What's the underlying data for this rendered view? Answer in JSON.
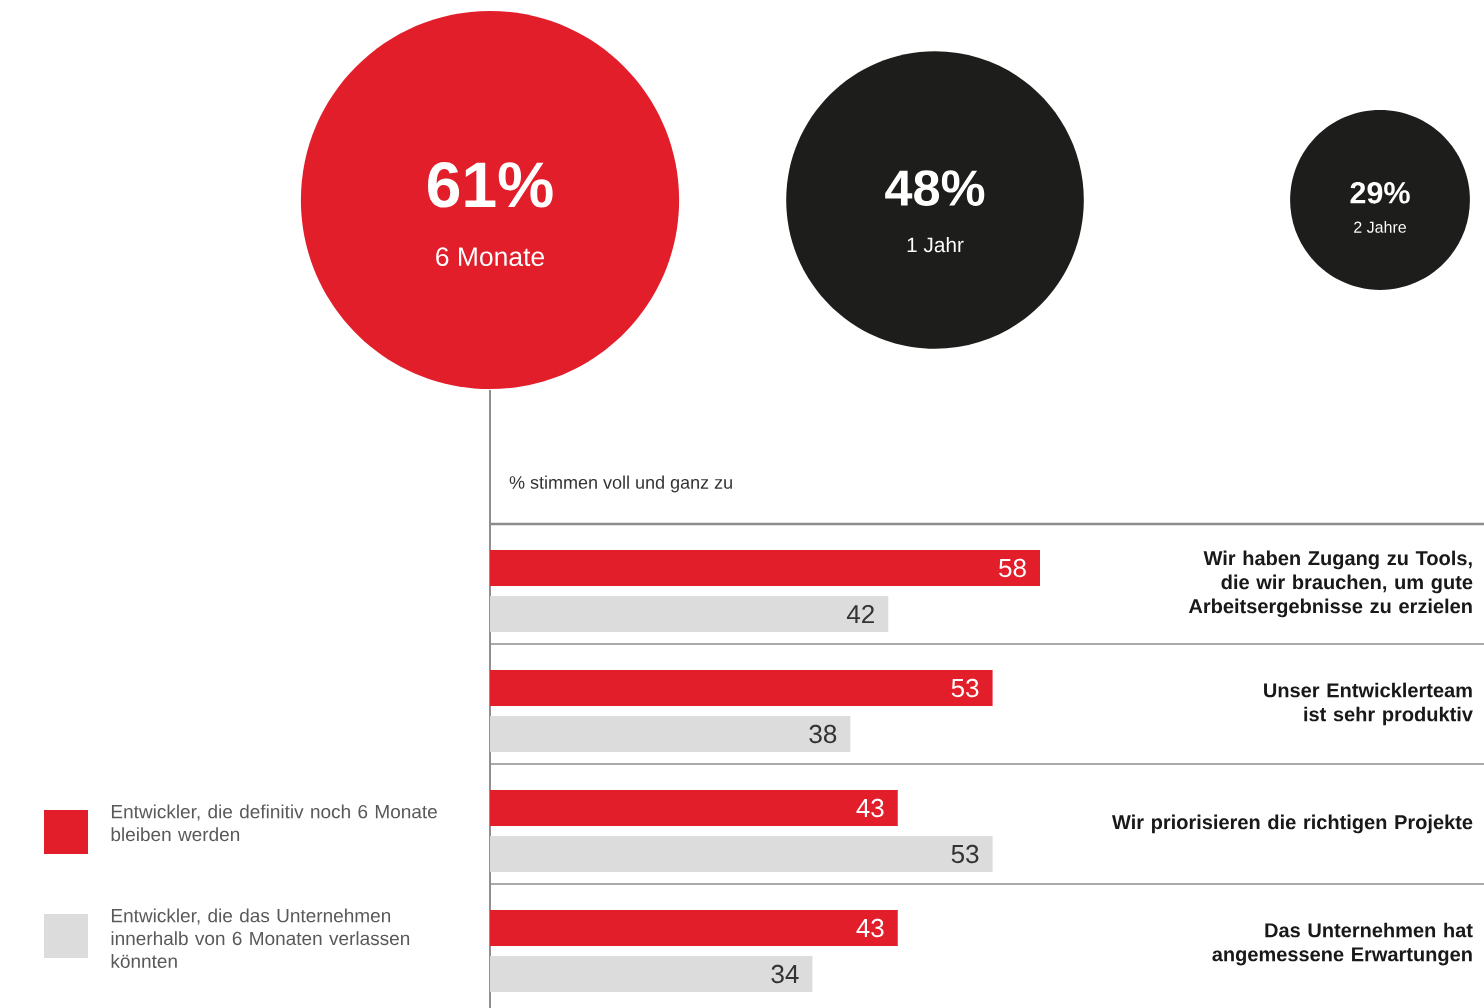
{
  "chart_data": [
    {
      "type": "other",
      "categories": [
        "6 Monate",
        "1 Jahr",
        "2 Jahre"
      ],
      "values": [
        61,
        48,
        29
      ],
      "value_labels": [
        "61%",
        "48%",
        "29%"
      ],
      "colors": [
        "#e31e2b",
        "#1d1d1b",
        "#1d1d1b"
      ]
    },
    {
      "type": "bar",
      "orientation": "horizontal",
      "title": "% stimmen voll und ganz zu",
      "categories": [
        "Wir haben Zugang zu Tools, die wir brauchen, um gute Arbeitsergebnisse zu erzielen",
        "Unser Entwicklerteam ist sehr produktiv",
        "Wir priorisieren die richtigen Projekte",
        "Das Unternehmen hat angemessene Erwartungen"
      ],
      "series": [
        {
          "name": "Entwickler, die definitiv noch 6 Monate bleiben werden",
          "color": "#e31e2b",
          "values": [
            58,
            53,
            43,
            43
          ]
        },
        {
          "name": "Entwickler, die das Unternehmen innerhalb von 6 Monaten verlassen könnten",
          "color": "#dcdcdc",
          "values": [
            42,
            38,
            53,
            34
          ]
        }
      ],
      "data_labels": true,
      "legend": "left"
    }
  ]
}
